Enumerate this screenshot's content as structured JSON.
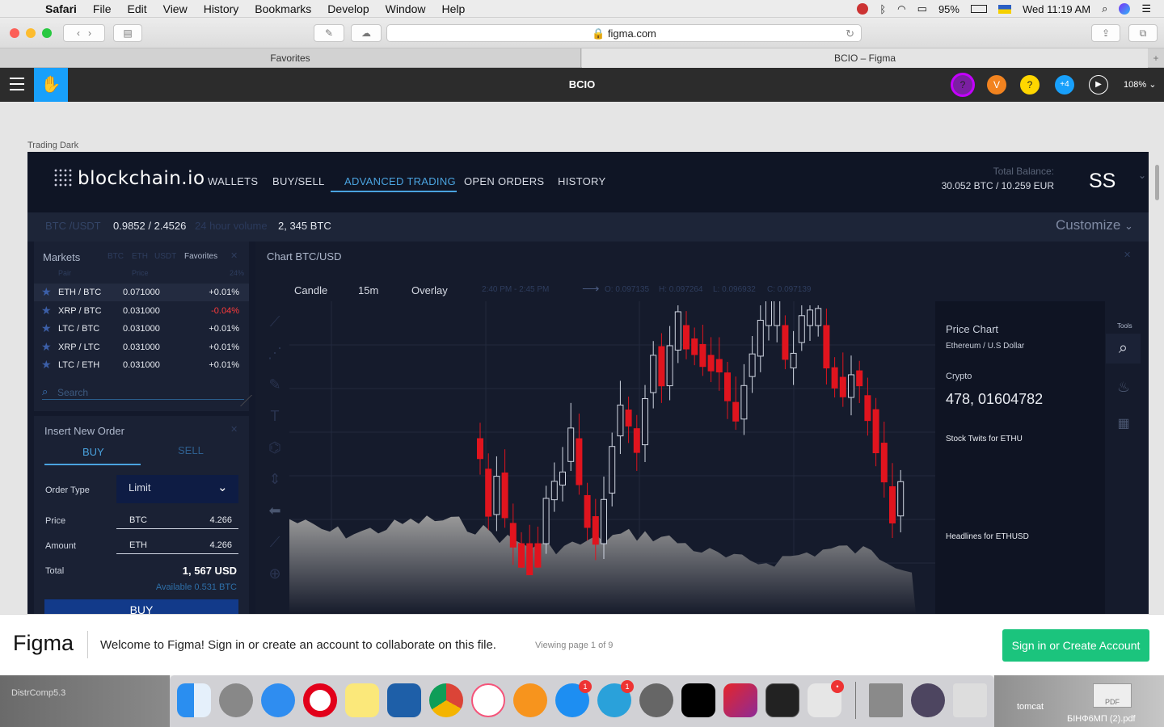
{
  "menubar": {
    "app": "Safari",
    "items": [
      "File",
      "Edit",
      "View",
      "History",
      "Bookmarks",
      "Develop",
      "Window",
      "Help"
    ],
    "battery": "95%",
    "clock": "Wed 11:19 AM"
  },
  "browser": {
    "url": "figma.com",
    "tabs": [
      "Favorites",
      "BCIO – Figma"
    ]
  },
  "figma": {
    "title": "BCIO",
    "avatars": [
      "?",
      "V",
      "?",
      "+4"
    ],
    "zoom": "108%",
    "frame_label": "Trading Dark"
  },
  "app": {
    "logo": "blockchain.io",
    "nav": [
      "WALLETS",
      "BUY/SELL",
      "ADVANCED TRADING",
      "OPEN ORDERS",
      "HISTORY"
    ],
    "balance_label": "Total Balance:",
    "balance_value": "30.052 BTC / 10.259 EUR",
    "user": "SS",
    "pair": "BTC /USDT",
    "pair_price": "0.9852 / 2.4526",
    "volume_label": "24 hour volume",
    "volume_value": "2, 345 BTC",
    "customize": "Customize",
    "markets": {
      "title": "Markets",
      "tabs": [
        "BTC",
        "ETH",
        "USDT",
        "Favorites"
      ],
      "cols": [
        "Pair",
        "Price",
        "24%"
      ],
      "rows": [
        {
          "pair": "ETH / BTC",
          "price": "0.071000",
          "change": "+0.01%"
        },
        {
          "pair": "XRP / BTC",
          "price": "0.031000",
          "change": "-0.04%"
        },
        {
          "pair": "LTC / BTC",
          "price": "0.031000",
          "change": "+0.01%"
        },
        {
          "pair": "XRP / LTC",
          "price": "0.031000",
          "change": "+0.01%"
        },
        {
          "pair": "LTC / ETH",
          "price": "0.031000",
          "change": "+0.01%"
        }
      ],
      "search": "Search"
    },
    "order": {
      "title": "Insert New Order",
      "buy": "BUY",
      "sell": "SELL",
      "type_label": "Order Type",
      "type_value": "Limit",
      "price_label": "Price",
      "price_cur": "BTC",
      "price_val": "4.266",
      "amount_label": "Amount",
      "amount_cur": "ETH",
      "amount_val": "4.266",
      "total_label": "Total",
      "total_val": "1, 567 USD",
      "available": "Available 0.531 BTC",
      "button": "BUY"
    },
    "chart": {
      "title": "Chart BTC/USD",
      "controls": [
        "Candle",
        "15m",
        "Overlay"
      ],
      "range": "2:40 PM - 2:45 PM",
      "ohlc": [
        "O: 0.097135",
        "H: 0.097264",
        "L: 0.096932",
        "C: 0.097139"
      ]
    },
    "side": {
      "title": "Price Chart",
      "subtitle": "Ethereum / U.S Dollar",
      "crypto_label": "Crypto",
      "crypto_value": "478, 01604782",
      "stock": "Stock Twits for ETHU",
      "headlines": "Headlines for ETHUSD",
      "tools": "Tools"
    }
  },
  "banner": {
    "logo": "Figma",
    "message": "Welcome to Figma! Sign in or create an account to collaborate on this file.",
    "page": "Viewing page 1 of 9",
    "cta": "Sign in or Create Account"
  },
  "desktop": {
    "left_label": "DistrComp5.3",
    "right_label1": "tomcat",
    "right_label2": "БІНФ6МП (2).pdf",
    "pdf": "PDF"
  },
  "dock": {
    "badges": [
      "1",
      "1",
      "•"
    ]
  }
}
